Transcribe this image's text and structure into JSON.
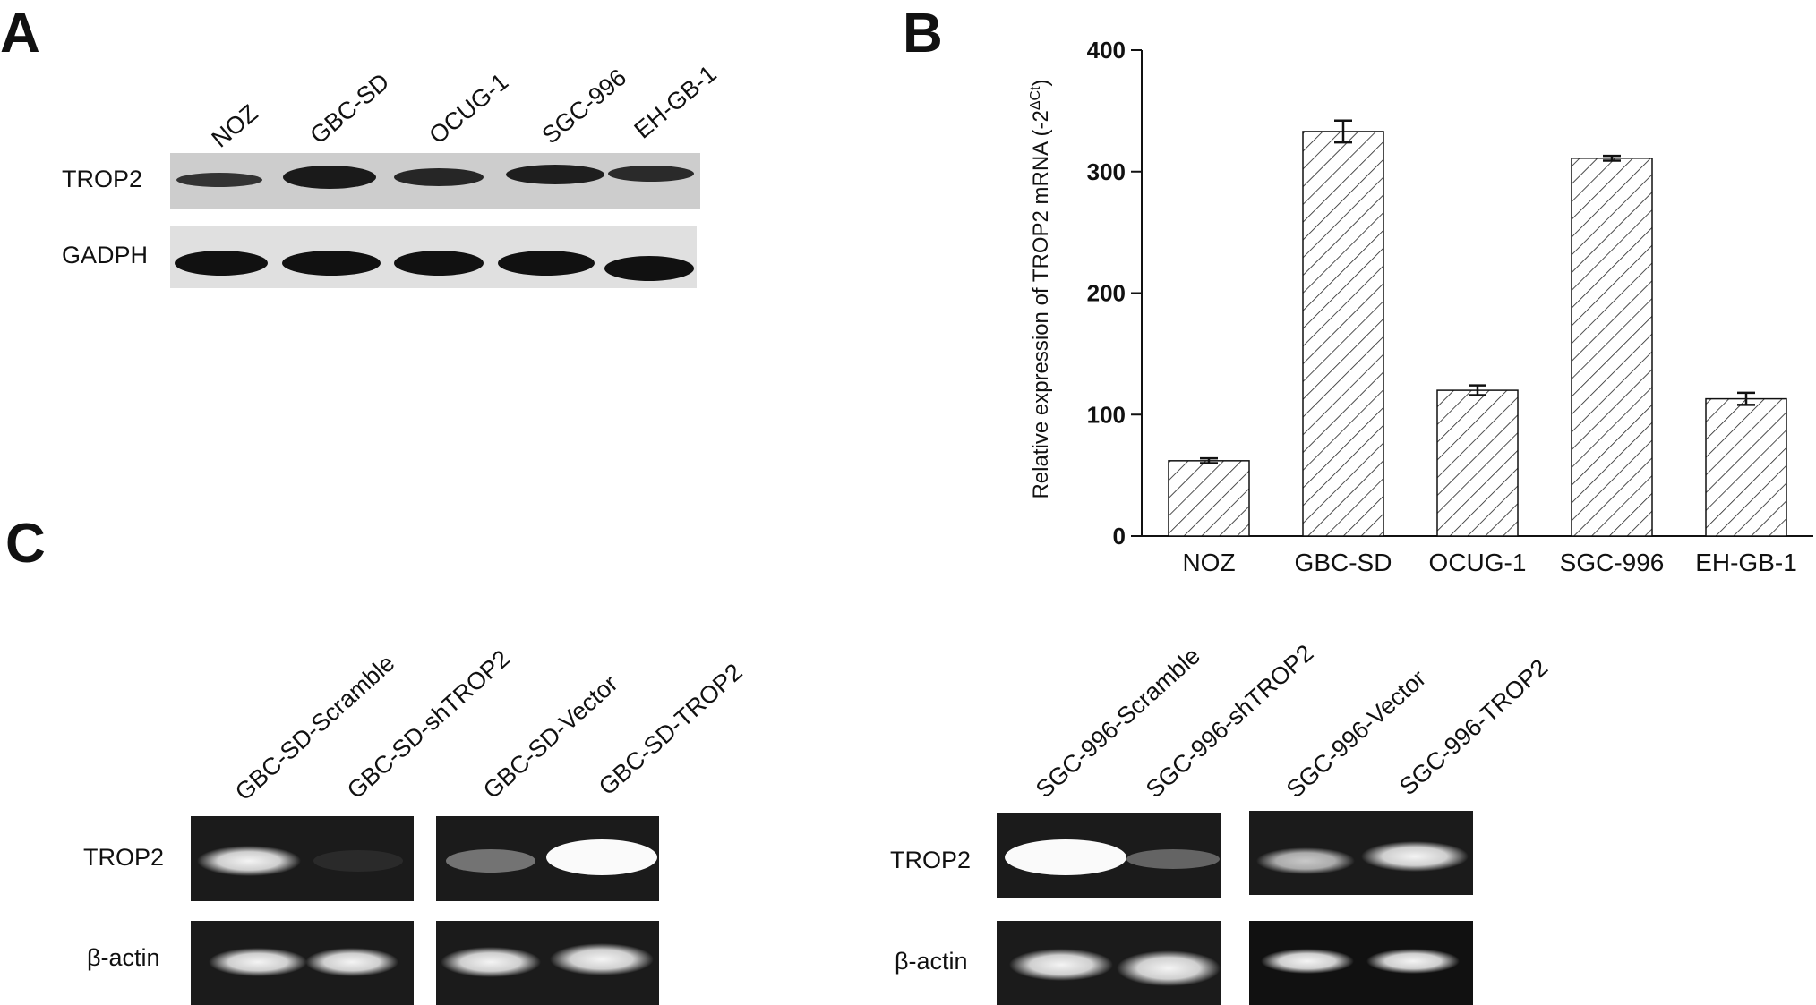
{
  "chart_data": {
    "type": "bar",
    "y_label": "Relative expression of TROP2 mRNA (-2",
    "y_label_sup": "ΔCt",
    "y_label_end": ")",
    "categories": [
      "NOZ",
      "GBC-SD",
      "OCUG-1",
      "SGC-996",
      "EH-GB-1"
    ],
    "values": [
      62,
      333,
      120,
      311,
      113
    ],
    "errors": [
      2,
      9,
      4,
      2,
      5
    ],
    "color": "#ffffff",
    "hatch": true,
    "ylim": [
      0,
      400
    ],
    "yticks": [
      0,
      100,
      200,
      300,
      400
    ],
    "grid": false
  },
  "figure": {
    "panel_labels": [
      "A",
      "B",
      "C"
    ],
    "panel_a": {
      "lanes": [
        "NOZ",
        "GBC-SD",
        "OCUG-1",
        "SGC-996",
        "EH-GB-1"
      ],
      "rows": [
        "TROP2",
        "GADPH"
      ]
    },
    "panel_c_left": {
      "lanes": [
        "GBC-SD-Scramble",
        "GBC-SD-shTROP2",
        "GBC-SD-Vector",
        "GBC-SD-TROP2"
      ],
      "rows": [
        "TROP2",
        "β-actin"
      ]
    },
    "panel_c_right": {
      "lanes": [
        "SGC-996-Scramble",
        "SGC-996-shTROP2",
        "SGC-996-Vector",
        "SGC-996-TROP2"
      ],
      "rows": [
        "TROP2",
        "β-actin"
      ]
    }
  }
}
